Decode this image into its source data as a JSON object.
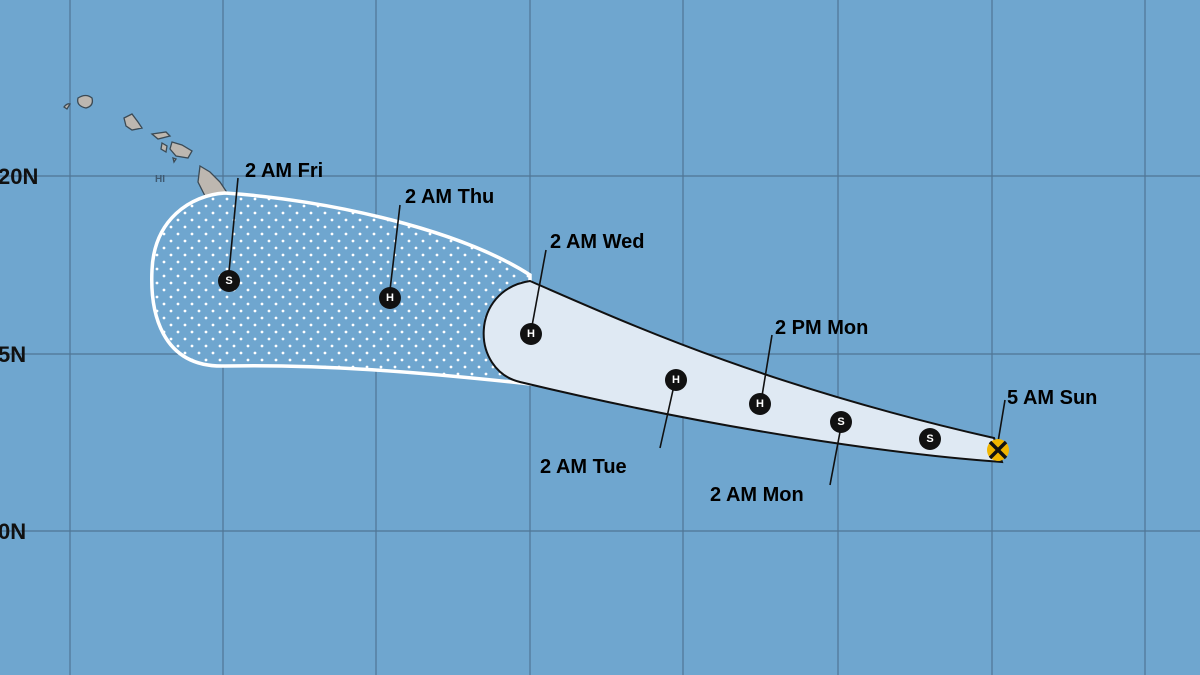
{
  "map": {
    "colors": {
      "ocean": "#6fa6cf",
      "grid": "#4a6f8f",
      "land": "#bdb7b0",
      "cone_near": "#dfe9f3",
      "cone_far_dots": "#ffffff",
      "current_position": "#f0b400"
    },
    "latitude_labels": [
      "20N",
      "5N",
      "0N"
    ],
    "state_label": "HI",
    "track_points": [
      {
        "label": "5 AM Sun",
        "symbol": "X",
        "type": "current-position"
      },
      {
        "label": "",
        "symbol": "S",
        "type": "tropical-storm"
      },
      {
        "label": "2 AM Mon",
        "symbol": "S",
        "type": "tropical-storm"
      },
      {
        "label": "2 PM Mon",
        "symbol": "H",
        "type": "hurricane"
      },
      {
        "label": "2 AM Tue",
        "symbol": "H",
        "type": "hurricane"
      },
      {
        "label": "2 AM Wed",
        "symbol": "H",
        "type": "hurricane"
      },
      {
        "label": "2 AM Thu",
        "symbol": "H",
        "type": "hurricane"
      },
      {
        "label": "2 AM Fri",
        "symbol": "S",
        "type": "tropical-storm"
      }
    ]
  }
}
